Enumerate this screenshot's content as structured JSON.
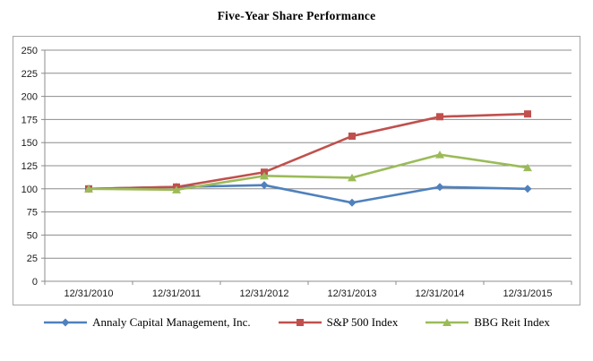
{
  "page": {
    "title": "Five-Year Share Performance"
  },
  "chart_data": {
    "type": "line",
    "title": "Five-Year Share Performance",
    "categories": [
      "12/31/2010",
      "12/31/2011",
      "12/31/2012",
      "12/31/2013",
      "12/31/2014",
      "12/31/2015"
    ],
    "series": [
      {
        "name": "Annaly Capital Management, Inc.",
        "color": "#4F81BD",
        "marker": "diamond",
        "values": [
          100,
          102,
          104,
          85,
          102,
          100
        ]
      },
      {
        "name": "S&P 500 Index",
        "color": "#C0504D",
        "marker": "square",
        "values": [
          100,
          102,
          118,
          157,
          178,
          181
        ]
      },
      {
        "name": "BBG Reit Index",
        "color": "#9BBB59",
        "marker": "triangle",
        "values": [
          100,
          99,
          114,
          112,
          137,
          123
        ]
      }
    ],
    "ylim": [
      0,
      250
    ],
    "ytick_step": 25,
    "y_tick_labels": [
      "0",
      "25",
      "50",
      "75",
      "100",
      "125",
      "150",
      "175",
      "200",
      "225",
      "250"
    ],
    "grid": true,
    "legend_position": "bottom",
    "colors": {
      "gridline": "#8c8c8c",
      "axis": "#8c8c8c",
      "border": "#a6a6a6",
      "text": "#1a1a1a"
    }
  }
}
